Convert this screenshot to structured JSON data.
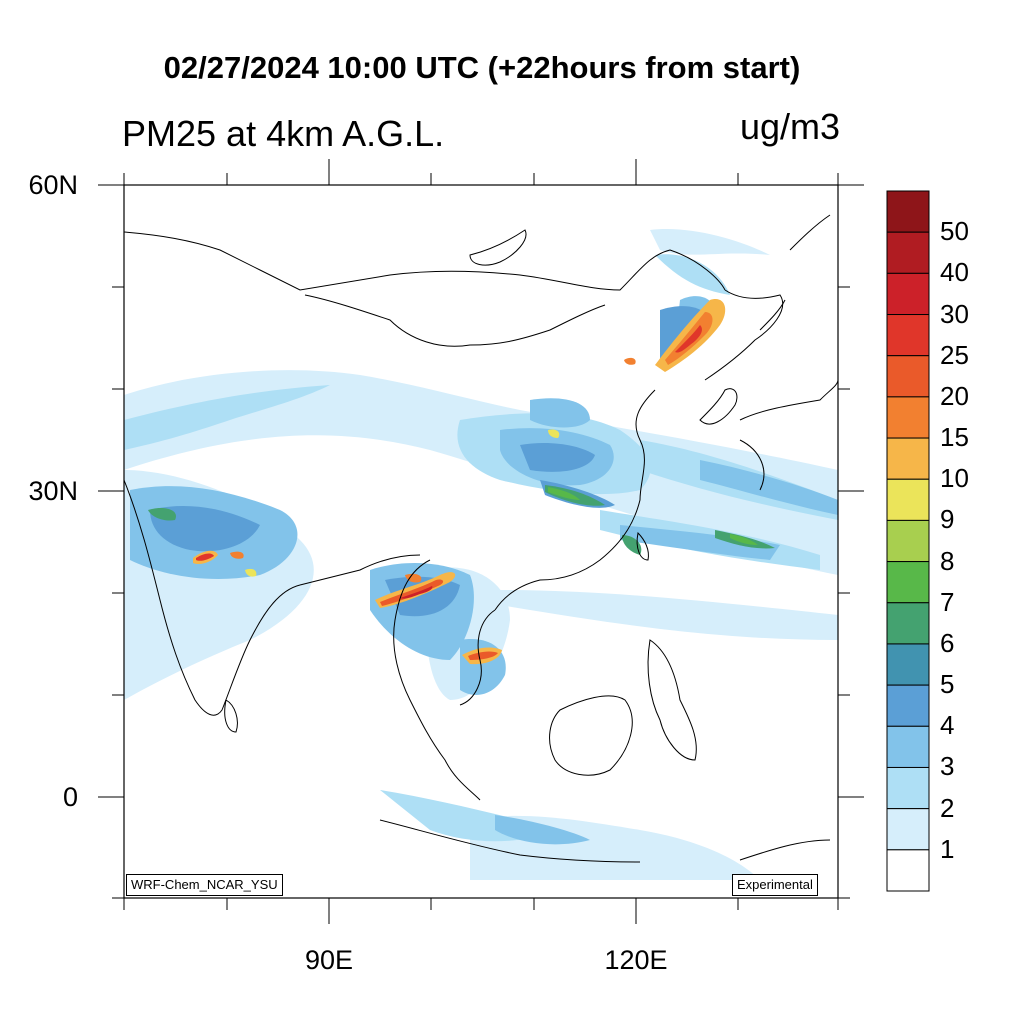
{
  "title": "02/27/2024 10:00 UTC (+22hours from start)",
  "subtitle": "PM25 at 4km A.G.L.",
  "units": "ug/m3",
  "lat_labels": [
    "60N",
    "30N",
    "0"
  ],
  "lon_labels": [
    "90E",
    "120E"
  ],
  "source_tag": "WRF-Chem_NCAR_YSU",
  "experimental_tag": "Experimental",
  "colorbar": {
    "levels": [
      "50",
      "40",
      "30",
      "25",
      "20",
      "15",
      "10",
      "9",
      "8",
      "7",
      "6",
      "5",
      "4",
      "3",
      "2",
      "1"
    ],
    "colors": [
      "#8e1519",
      "#b01c22",
      "#cc2129",
      "#e0362a",
      "#ea5a2a",
      "#f28030",
      "#f6b649",
      "#ebe45a",
      "#a8cf4f",
      "#58b849",
      "#44a270",
      "#4193b0",
      "#5b9fd6",
      "#82c3ea",
      "#aedff5",
      "#d6eefb",
      "#ffffff"
    ]
  },
  "map": {
    "lon_range": [
      70,
      140
    ],
    "lat_range": [
      -10,
      60
    ],
    "projection": "lat-lon",
    "variable": "PM2.5 concentration"
  }
}
